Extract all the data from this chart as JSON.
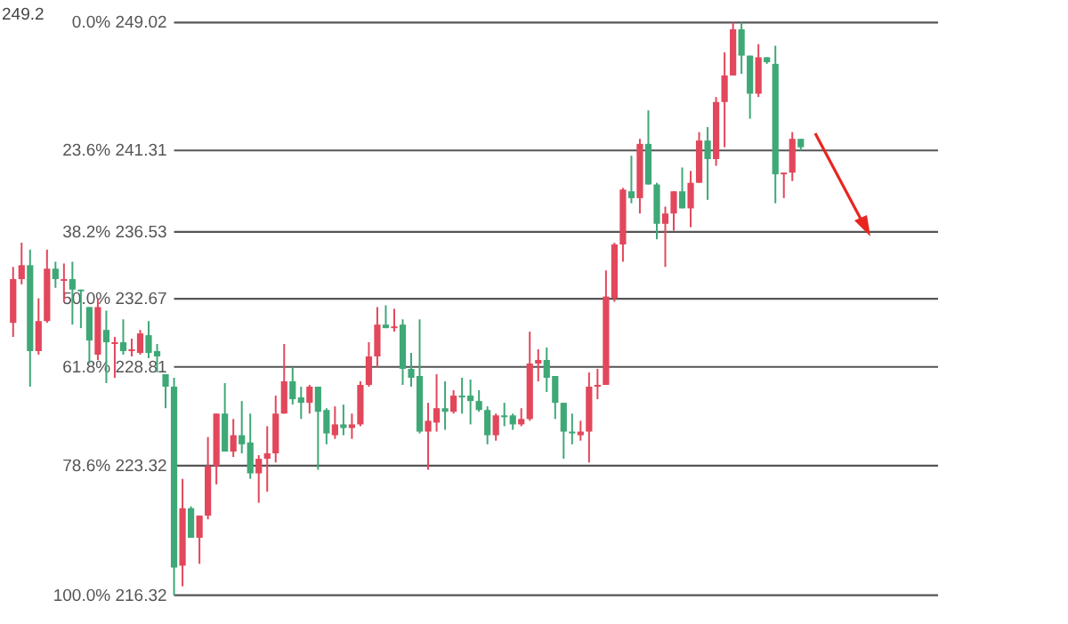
{
  "chart_data": {
    "type": "candlestick",
    "log": true,
    "tick_labels": false,
    "ylim": [
      214.8,
      250.4
    ],
    "categories": [
      null,
      null,
      null,
      null,
      null,
      null,
      null,
      null,
      null,
      null,
      null,
      null,
      null,
      null,
      null,
      null,
      null,
      null,
      null,
      null,
      null,
      null,
      null,
      null,
      null,
      null,
      null,
      null,
      null,
      null,
      null,
      null,
      null,
      null,
      null,
      null,
      null,
      null,
      null,
      null,
      null,
      null,
      null,
      null,
      null,
      null,
      null,
      null,
      null,
      null,
      null,
      null,
      null,
      null,
      null,
      null,
      null,
      null,
      null,
      null,
      null,
      null,
      null,
      null,
      null,
      null,
      null,
      null,
      null,
      null,
      null,
      null,
      null,
      null,
      null,
      null,
      null,
      null,
      null,
      null,
      null,
      null,
      null,
      null,
      null,
      null,
      null,
      null,
      null,
      null,
      null,
      null,
      null,
      null
    ],
    "ohlc": [
      [
        231.3,
        234.5,
        230.5,
        233.8
      ],
      [
        233.8,
        235.9,
        233.5,
        234.6
      ],
      [
        234.6,
        235.5,
        227.7,
        229.7
      ],
      [
        229.7,
        232.7,
        229.5,
        231.4
      ],
      [
        231.4,
        235.5,
        231.3,
        234.4
      ],
      [
        234.4,
        234.8,
        233.3,
        233.8
      ],
      [
        233.7,
        234.7,
        232.5,
        233.8
      ],
      [
        233.8,
        234.8,
        231.2,
        233.2
      ],
      [
        233.2,
        233.2,
        231.0,
        233.1
      ],
      [
        232.2,
        232.2,
        229.0,
        230.3
      ],
      [
        229.5,
        232.7,
        229.2,
        232.2
      ],
      [
        230.9,
        232.0,
        227.9,
        230.2
      ],
      [
        230.1,
        230.5,
        228.2,
        230.2
      ],
      [
        230.2,
        231.5,
        229.5,
        229.7
      ],
      [
        229.7,
        230.4,
        229.4,
        229.8
      ],
      [
        229.6,
        230.9,
        229.5,
        230.7
      ],
      [
        230.6,
        231.4,
        229.3,
        229.6
      ],
      [
        229.7,
        230.1,
        228.5,
        229.4
      ],
      [
        228.4,
        228.4,
        226.5,
        227.7
      ],
      [
        227.7,
        228.2,
        216.32,
        217.8
      ],
      [
        217.9,
        222.6,
        216.8,
        221.0
      ],
      [
        221.0,
        221.1,
        219.4,
        219.4
      ],
      [
        219.4,
        220.6,
        218.0,
        220.6
      ],
      [
        220.6,
        224.9,
        220.4,
        223.3
      ],
      [
        223.3,
        226.2,
        222.3,
        226.2
      ],
      [
        226.2,
        227.9,
        224.1,
        224.1
      ],
      [
        224.1,
        225.9,
        223.8,
        225.0
      ],
      [
        225.0,
        226.9,
        224.0,
        224.5
      ],
      [
        224.6,
        226.2,
        222.6,
        222.9
      ],
      [
        222.9,
        223.9,
        221.3,
        223.7
      ],
      [
        223.7,
        225.5,
        221.9,
        224.0
      ],
      [
        224.0,
        227.2,
        223.5,
        226.2
      ],
      [
        226.2,
        230.1,
        226.2,
        228.0
      ],
      [
        228.0,
        228.8,
        226.7,
        227.0
      ],
      [
        227.1,
        227.7,
        225.9,
        226.8
      ],
      [
        226.8,
        227.8,
        226.2,
        227.7
      ],
      [
        227.7,
        227.7,
        223.1,
        226.3
      ],
      [
        226.4,
        226.5,
        224.5,
        225.1
      ],
      [
        225.0,
        226.6,
        224.8,
        225.6
      ],
      [
        225.6,
        226.7,
        225.0,
        225.4
      ],
      [
        225.4,
        226.2,
        224.8,
        225.6
      ],
      [
        225.6,
        228.0,
        225.5,
        227.8
      ],
      [
        227.8,
        230.2,
        227.7,
        229.4
      ],
      [
        229.4,
        232.2,
        228.8,
        231.2
      ],
      [
        231.2,
        232.3,
        231.0,
        231.0
      ],
      [
        231.0,
        232.1,
        230.8,
        231.1
      ],
      [
        231.2,
        231.5,
        227.8,
        228.7
      ],
      [
        228.7,
        229.6,
        227.7,
        228.2
      ],
      [
        228.3,
        231.5,
        225.1,
        225.2
      ],
      [
        225.2,
        226.8,
        223.1,
        225.8
      ],
      [
        225.7,
        228.4,
        225.2,
        226.5
      ],
      [
        226.5,
        228.0,
        225.3,
        226.3
      ],
      [
        226.3,
        227.5,
        226.2,
        227.2
      ],
      [
        227.2,
        228.2,
        226.2,
        227.1
      ],
      [
        227.2,
        228.1,
        225.6,
        226.9
      ],
      [
        226.9,
        227.5,
        226.3,
        226.4
      ],
      [
        226.4,
        226.6,
        224.5,
        225.0
      ],
      [
        225.0,
        226.2,
        224.7,
        226.1
      ],
      [
        226.1,
        226.8,
        225.5,
        226.0
      ],
      [
        226.1,
        226.2,
        225.3,
        225.6
      ],
      [
        225.6,
        226.5,
        225.5,
        225.9
      ],
      [
        225.9,
        230.8,
        225.8,
        229.0
      ],
      [
        229.0,
        229.8,
        228.0,
        229.2
      ],
      [
        229.2,
        229.9,
        227.4,
        228.2
      ],
      [
        228.3,
        228.3,
        225.9,
        226.8
      ],
      [
        226.8,
        226.8,
        223.7,
        225.2
      ],
      [
        225.2,
        226.2,
        224.5,
        225.1
      ],
      [
        225.0,
        225.8,
        224.7,
        225.2
      ],
      [
        225.2,
        228.5,
        223.5,
        227.7
      ],
      [
        227.7,
        228.7,
        227.0,
        227.8
      ],
      [
        227.8,
        234.3,
        227.8,
        232.8
      ],
      [
        232.7,
        235.9,
        232.5,
        235.8
      ],
      [
        235.8,
        239.1,
        234.8,
        239.0
      ],
      [
        238.9,
        241.0,
        238.2,
        238.5
      ],
      [
        238.5,
        242.0,
        237.6,
        241.7
      ],
      [
        241.7,
        243.7,
        239.3,
        239.3
      ],
      [
        239.3,
        239.4,
        236.1,
        237.0
      ],
      [
        237.0,
        238.0,
        234.5,
        237.6
      ],
      [
        237.6,
        238.9,
        236.6,
        238.9
      ],
      [
        238.9,
        240.3,
        237.9,
        237.9
      ],
      [
        237.9,
        240.1,
        236.8,
        239.4
      ],
      [
        239.4,
        242.4,
        239.4,
        241.9
      ],
      [
        241.9,
        242.7,
        238.4,
        240.8
      ],
      [
        240.8,
        244.5,
        240.4,
        244.2
      ],
      [
        244.2,
        247.2,
        241.5,
        245.8
      ],
      [
        245.8,
        249.02,
        245.8,
        248.6
      ],
      [
        248.6,
        249.02,
        245.9,
        247.0
      ],
      [
        247.0,
        247.0,
        243.2,
        244.7
      ],
      [
        244.7,
        247.7,
        244.5,
        246.9
      ],
      [
        246.9,
        246.9,
        246.5,
        246.6
      ],
      [
        246.5,
        247.6,
        238.2,
        239.9
      ],
      [
        239.9,
        240.0,
        238.5,
        240.0
      ],
      [
        240.0,
        242.4,
        239.5,
        242.0
      ],
      [
        242.0,
        242.0,
        241.3,
        241.5
      ]
    ],
    "colors": [
      "#e2475b",
      "#e2475b",
      "#3fa877",
      "#e2475b",
      "#e2475b",
      "#3fa877",
      "#e2475b",
      "#3fa877",
      "#3fa877",
      "#3fa877",
      "#e2475b",
      "#3fa877",
      "#e2475b",
      "#3fa877",
      "#e2475b",
      "#e2475b",
      "#3fa877",
      "#3fa877",
      "#3fa877",
      "#3fa877",
      "#e2475b",
      "#3fa877",
      "#e2475b",
      "#e2475b",
      "#e2475b",
      "#3fa877",
      "#e2475b",
      "#3fa877",
      "#3fa877",
      "#e2475b",
      "#e2475b",
      "#e2475b",
      "#e2475b",
      "#3fa877",
      "#3fa877",
      "#e2475b",
      "#3fa877",
      "#3fa877",
      "#e2475b",
      "#3fa877",
      "#e2475b",
      "#e2475b",
      "#e2475b",
      "#e2475b",
      "#3fa877",
      "#e2475b",
      "#3fa877",
      "#3fa877",
      "#3fa877",
      "#e2475b",
      "#e2475b",
      "#3fa877",
      "#e2475b",
      "#3fa877",
      "#3fa877",
      "#3fa877",
      "#3fa877",
      "#e2475b",
      "#3fa877",
      "#3fa877",
      "#e2475b",
      "#e2475b",
      "#e2475b",
      "#3fa877",
      "#3fa877",
      "#3fa877",
      "#3fa877",
      "#e2475b",
      "#e2475b",
      "#e2475b",
      "#e2475b",
      "#e2475b",
      "#e2475b",
      "#3fa877",
      "#e2475b",
      "#3fa877",
      "#3fa877",
      "#e2475b",
      "#e2475b",
      "#3fa877",
      "#e2475b",
      "#e2475b",
      "#3fa877",
      "#e2475b",
      "#e2475b",
      "#e2475b",
      "#3fa877",
      "#3fa877",
      "#e2475b",
      "#3fa877",
      "#3fa877",
      "#e2475b",
      "#e2475b",
      "#3fa877"
    ],
    "ref_lines": [
      {
        "axis": "y",
        "value": 249.02,
        "label": "0.0% 249.02",
        "color": "#555555"
      },
      {
        "axis": "y",
        "value": 241.31,
        "label": "23.6% 241.31",
        "color": "#555555"
      },
      {
        "axis": "y",
        "value": 236.53,
        "label": "38.2% 236.53",
        "color": "#555555"
      },
      {
        "axis": "y",
        "value": 232.67,
        "label": "50.0% 232.67",
        "color": "#555555"
      },
      {
        "axis": "y",
        "value": 228.81,
        "label": "61.8% 228.81",
        "color": "#555555"
      },
      {
        "axis": "y",
        "value": 223.32,
        "label": "78.6% 223.32",
        "color": "#555555"
      },
      {
        "axis": "y",
        "value": 216.32,
        "label": "100.0% 216.32",
        "color": "#555555"
      }
    ],
    "annotations": [
      "249.2"
    ]
  }
}
